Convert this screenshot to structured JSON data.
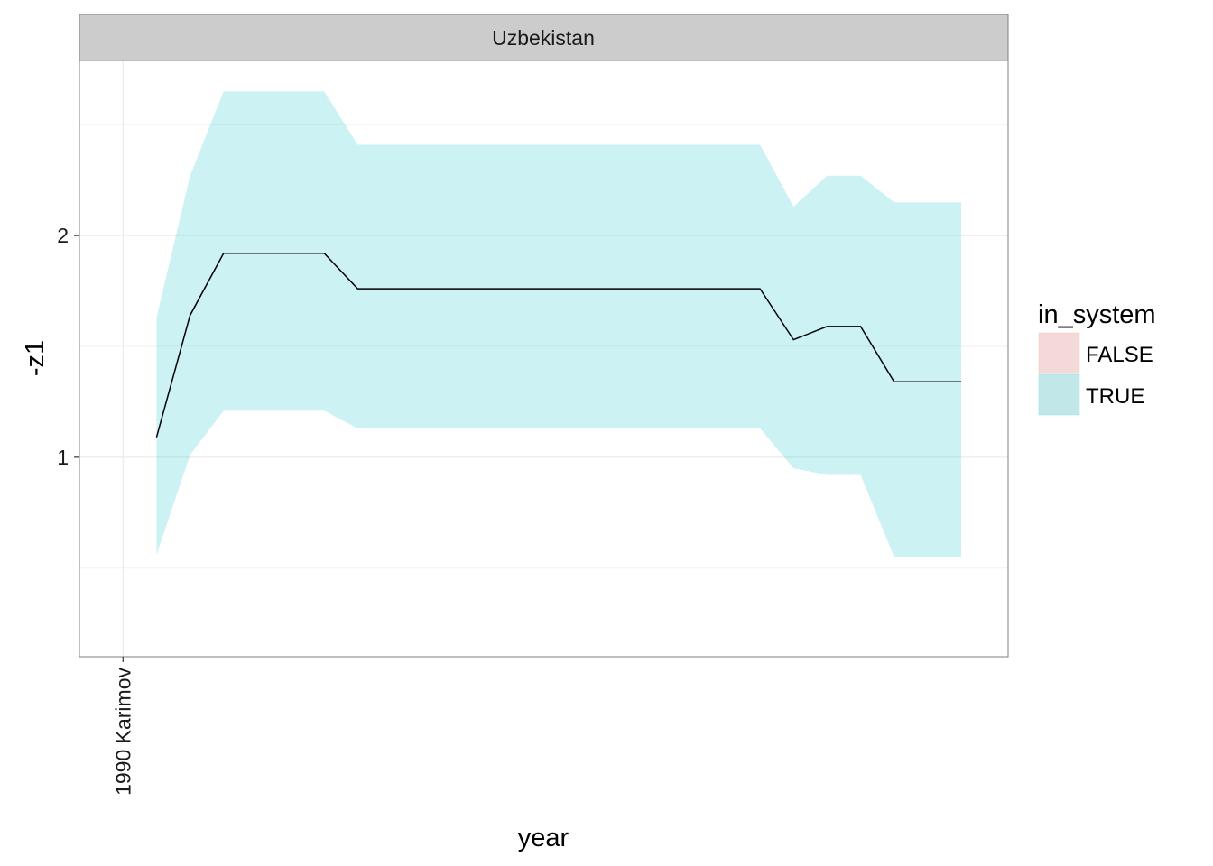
{
  "chart_data": {
    "type": "area",
    "facet": "Uzbekistan",
    "xlabel": "year",
    "ylabel": "-z1",
    "x_ticks": [
      {
        "value": 1990,
        "label": "1990 Karimov"
      }
    ],
    "xlim": [
      1988.7,
      2016.4
    ],
    "ylim": [
      0.1,
      2.79
    ],
    "y_ticks": [
      1,
      2
    ],
    "grid": true,
    "legend": {
      "title": "in_system",
      "position": "right",
      "entries": [
        {
          "label": "FALSE",
          "color": "#f8766d"
        },
        {
          "label": "TRUE",
          "color": "#00bfc4"
        }
      ]
    },
    "series": [
      {
        "group": "TRUE",
        "x": [
          1991,
          1992,
          1993,
          1994,
          1995,
          1996,
          1997,
          1998,
          1999,
          2000,
          2001,
          2002,
          2003,
          2004,
          2005,
          2006,
          2007,
          2008,
          2009,
          2010,
          2011,
          2012,
          2013,
          2014,
          2015
        ],
        "y": [
          1.09,
          1.64,
          1.92,
          1.92,
          1.92,
          1.92,
          1.76,
          1.76,
          1.76,
          1.76,
          1.76,
          1.76,
          1.76,
          1.76,
          1.76,
          1.76,
          1.76,
          1.76,
          1.76,
          1.53,
          1.59,
          1.59,
          1.34,
          1.34,
          1.34
        ],
        "ymin": [
          0.56,
          1.01,
          1.21,
          1.21,
          1.21,
          1.21,
          1.13,
          1.13,
          1.13,
          1.13,
          1.13,
          1.13,
          1.13,
          1.13,
          1.13,
          1.13,
          1.13,
          1.13,
          1.13,
          0.95,
          0.92,
          0.92,
          0.55,
          0.55,
          0.55
        ],
        "ymax": [
          1.63,
          2.27,
          2.65,
          2.65,
          2.65,
          2.65,
          2.41,
          2.41,
          2.41,
          2.41,
          2.41,
          2.41,
          2.41,
          2.41,
          2.41,
          2.41,
          2.41,
          2.41,
          2.41,
          2.13,
          2.27,
          2.27,
          2.15,
          2.15,
          2.15
        ]
      }
    ],
    "colors": {
      "ribbon": "#00bfc4",
      "ribbon_opacity": 0.2,
      "line": "#000000"
    }
  }
}
